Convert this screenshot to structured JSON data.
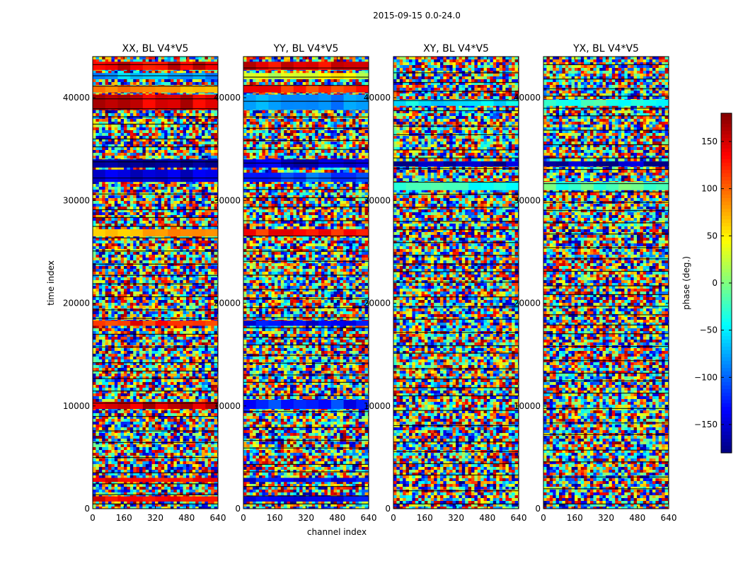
{
  "chart_data": {
    "type": "heatmap",
    "title": "2015-09-15 0.0-24.0",
    "xlabel": "channel index",
    "ylabel": "time index",
    "xlim": [
      0,
      640
    ],
    "ylim": [
      0,
      44000
    ],
    "xticks": [
      0,
      160,
      320,
      480,
      640
    ],
    "yticks": [
      0,
      10000,
      20000,
      30000,
      40000
    ],
    "colorbar": {
      "label": "phase (deg.)",
      "range": [
        -180,
        180
      ],
      "ticks": [
        -150,
        -100,
        -50,
        0,
        50,
        100,
        150
      ],
      "colormap": "jet"
    },
    "panels": [
      {
        "title": "XX, BL V4*V5",
        "description": "random phase noise with coherent red/blue bands near 1000, 2800, 10000, 18000, 27000, 32000-34000 and 39000-44000"
      },
      {
        "title": "YY, BL V4*V5",
        "description": "random phase noise with coherent blue/red bands near 1000, 2800, 10000, 18000, 27000, 32000-34000 and 39000-44000"
      },
      {
        "title": "XY, BL V4*V5",
        "description": "mostly random phase noise with a few coherent bands"
      },
      {
        "title": "YX, BL V4*V5",
        "description": "mostly random phase noise with a few coherent bands"
      }
    ]
  }
}
